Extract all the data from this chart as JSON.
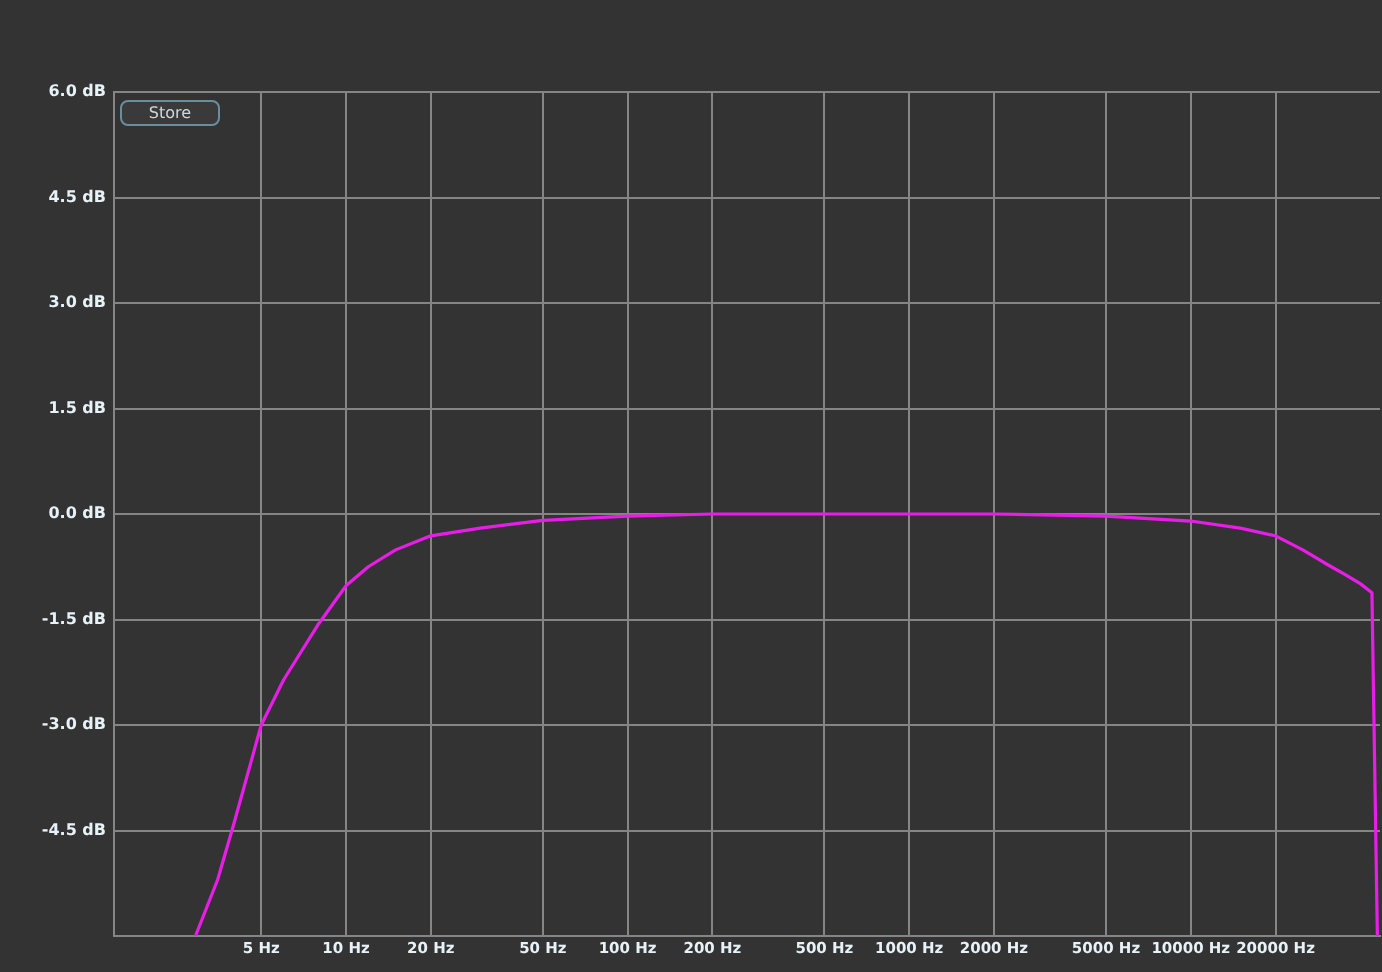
{
  "chart_data": {
    "type": "line",
    "log": "x",
    "grid": true,
    "legend": false,
    "marker": "none",
    "line_style": "solid",
    "annotations": [
      "Store"
    ],
    "x": [
      2.92,
      3.5,
      4,
      5,
      6,
      7,
      8,
      10,
      12,
      15,
      20,
      30,
      50,
      100,
      200,
      500,
      1000,
      2000,
      5000,
      10000,
      15000,
      20000,
      25000,
      30000,
      35000,
      40000,
      44000,
      46000
    ],
    "series": [
      {
        "color": "#e81ee8",
        "values": [
          -6.0,
          -5.2,
          -4.4,
          -3.0,
          -2.36,
          -1.93,
          -1.56,
          -1.02,
          -0.75,
          -0.51,
          -0.31,
          -0.2,
          -0.09,
          -0.03,
          0,
          0,
          0,
          0,
          -0.03,
          -0.1,
          -0.2,
          -0.31,
          -0.51,
          -0.7,
          -0.85,
          -0.99,
          -1.12,
          -6.0
        ]
      }
    ],
    "xlim": [
      1.5,
      47000
    ],
    "xticks": [
      {
        "value": 5,
        "label": "5 Hz"
      },
      {
        "value": 10,
        "label": "10 Hz"
      },
      {
        "value": 20,
        "label": "20 Hz"
      },
      {
        "value": 50,
        "label": "50 Hz"
      },
      {
        "value": 100,
        "label": "100 Hz"
      },
      {
        "value": 200,
        "label": "200 Hz"
      },
      {
        "value": 500,
        "label": "500 Hz"
      },
      {
        "value": 1000,
        "label": "1000 Hz"
      },
      {
        "value": 2000,
        "label": "2000 Hz"
      },
      {
        "value": 5000,
        "label": "5000 Hz"
      },
      {
        "value": 10000,
        "label": "10000 Hz"
      },
      {
        "value": 20000,
        "label": "20000 Hz"
      }
    ],
    "ylim": [
      -6,
      6
    ],
    "yticks": [
      {
        "value": 6,
        "label": "6.0 dB"
      },
      {
        "value": 4.5,
        "label": "4.5 dB"
      },
      {
        "value": 3,
        "label": "3.0 dB"
      },
      {
        "value": 1.5,
        "label": "1.5 dB"
      },
      {
        "value": 0,
        "label": "0.0 dB"
      },
      {
        "value": -1.5,
        "label": "-1.5 dB"
      },
      {
        "value": -3,
        "label": "-3.0 dB"
      },
      {
        "value": -4.5,
        "label": "-4.5 dB"
      },
      {
        "value": -6,
        "label": null
      }
    ]
  }
}
